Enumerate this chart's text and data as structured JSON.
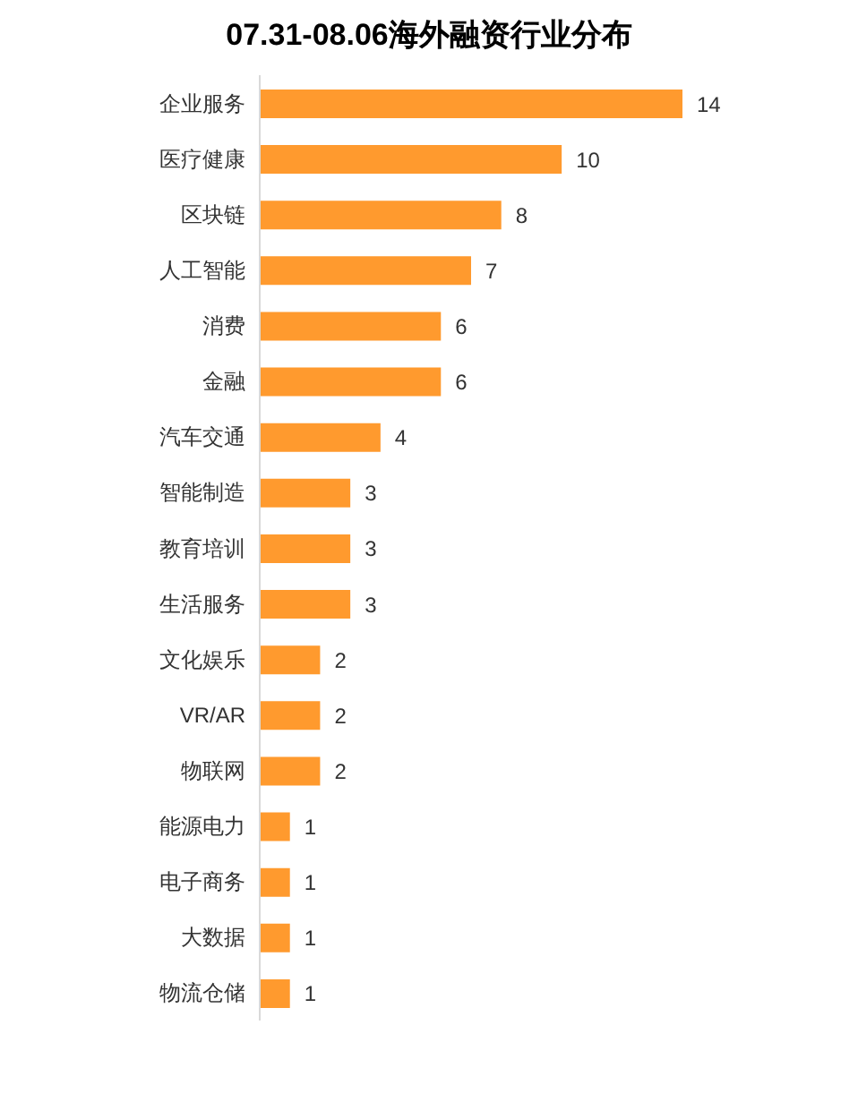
{
  "chart_data": {
    "type": "bar",
    "orientation": "horizontal",
    "title": "07.31-08.06海外融资行业分布",
    "categories": [
      "企业服务",
      "医疗健康",
      "区块链",
      "人工智能",
      "消费",
      "金融",
      "汽车交通",
      "智能制造",
      "教育培训",
      "生活服务",
      "文化娱乐",
      "VR/AR",
      "物联网",
      "能源电力",
      "电子商务",
      "大数据",
      "物流仓储"
    ],
    "values": [
      14,
      10,
      8,
      7,
      6,
      6,
      4,
      3,
      3,
      3,
      2,
      2,
      2,
      1,
      1,
      1,
      1
    ],
    "color": "#ff9a2e",
    "data_labels": true,
    "grid": false,
    "legend": false
  }
}
